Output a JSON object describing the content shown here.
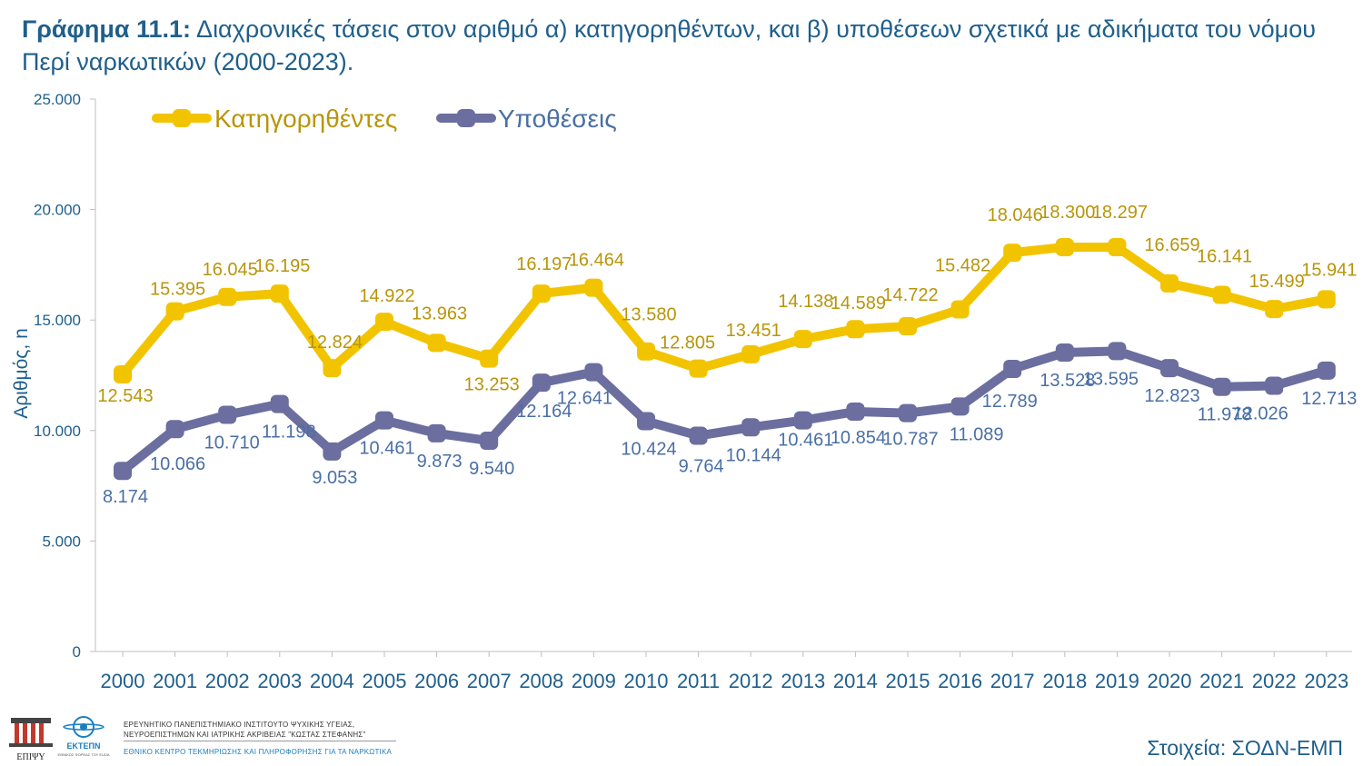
{
  "title": {
    "prefix": "Γράφημα 11.1:",
    "text": " Διαχρονικές τάσεις στον αριθμό α) κατηγορηθέντων, και β) υποθέσεων σχετικά με αδικήματα του νόμου Περί ναρκωτικών (2000-2023)."
  },
  "footer": {
    "logo1_text": "ΕΠΙΨΥ",
    "logo2_text": "ΕΚΤΕΠΝ",
    "logo2_sub": "ΕΘΝΙΚΟΣ ΦΟΡΕΑΣ ΤΟΥ EUDA",
    "institute_line1": "ΕΡΕΥΝΗΤΙΚΟ ΠΑΝΕΠΙΣΤΗΜΙΑΚΟ ΙΝΣΤΙΤΟΥΤΟ ΨΥΧΙΚΗΣ ΥΓΕΙΑΣ,",
    "institute_line2": "ΝΕΥΡΟΕΠΙΣΤΗΜΩΝ ΚΑΙ ΙΑΤΡΙΚΗΣ ΑΚΡΙΒΕΙΑΣ \"ΚΩΣΤΑΣ ΣΤΕΦΑΝΗΣ\"",
    "institute_line3": "ΕΘΝΙΚΟ ΚΕΝΤΡΟ ΤΕΚΜΗΡΙΩΣΗΣ ΚΑΙ ΠΛΗΡΟΦΟΡΗΣΗΣ ΓΙΑ ΤΑ ΝΑΡΚΩΤΙΚΑ",
    "source": "Στοιχεία: ΣΟΔΝ-ΕΜΠ"
  },
  "colors": {
    "title": "#1f5f8b",
    "accused": "#f2c400",
    "accused_label": "#b8950a",
    "cases": "#6b6e9e",
    "cases_label": "#4a6fa5",
    "axis_text": "#1f5f8b"
  },
  "chart_data": {
    "type": "line",
    "categories": [
      "2000",
      "2001",
      "2002",
      "2003",
      "2004",
      "2005",
      "2006",
      "2007",
      "2008",
      "2009",
      "2010",
      "2011",
      "2012",
      "2013",
      "2014",
      "2015",
      "2016",
      "2017",
      "2018",
      "2019",
      "2020",
      "2021",
      "2022",
      "2023"
    ],
    "series": [
      {
        "name": "Κατηγορηθέντες",
        "values": [
          12543,
          15395,
          16045,
          16195,
          12824,
          14922,
          13963,
          13253,
          16197,
          16464,
          13580,
          12805,
          13451,
          14138,
          14589,
          14722,
          15482,
          18046,
          18300,
          18297,
          16659,
          16141,
          15499,
          15941
        ],
        "labels": [
          "12.543",
          "15.395",
          "16.045",
          "16.195",
          "12.824",
          "14.922",
          "13.963",
          "13.253",
          "16.197",
          "16.464",
          "13.580",
          "12.805",
          "13.451",
          "14.138",
          "14.589",
          "14.722",
          "15.482",
          "18.046",
          "18.300",
          "18.297",
          "16.659",
          "16.141",
          "15.499",
          "15.941"
        ]
      },
      {
        "name": "Υποθέσεις",
        "values": [
          8174,
          10066,
          10710,
          11198,
          9053,
          10461,
          9873,
          9540,
          12164,
          12641,
          10424,
          9764,
          10144,
          10461,
          10854,
          10787,
          11089,
          12789,
          13528,
          13595,
          12823,
          11978,
          12026,
          12713
        ],
        "labels": [
          "8.174",
          "10.066",
          "10.710",
          "11.198",
          "9.053",
          "10.461",
          "9.873",
          "9.540",
          "12.164",
          "12.641",
          "10.424",
          "9.764",
          "10.144",
          "10.461",
          "10.854",
          "10.787",
          "11.089",
          "12.789",
          "13.528",
          "13.595",
          "12.823",
          "11.978",
          "12.026",
          "12.713"
        ]
      }
    ],
    "ylabel": "Αριθμός, n",
    "xlabel": "",
    "ylim": [
      0,
      25000
    ],
    "yticks": [
      0,
      5000,
      10000,
      15000,
      20000,
      25000
    ],
    "ytick_labels": [
      "0",
      "5.000",
      "10.000",
      "15.000",
      "20.000",
      "25.000"
    ],
    "grid": false,
    "legend": "top-left"
  }
}
